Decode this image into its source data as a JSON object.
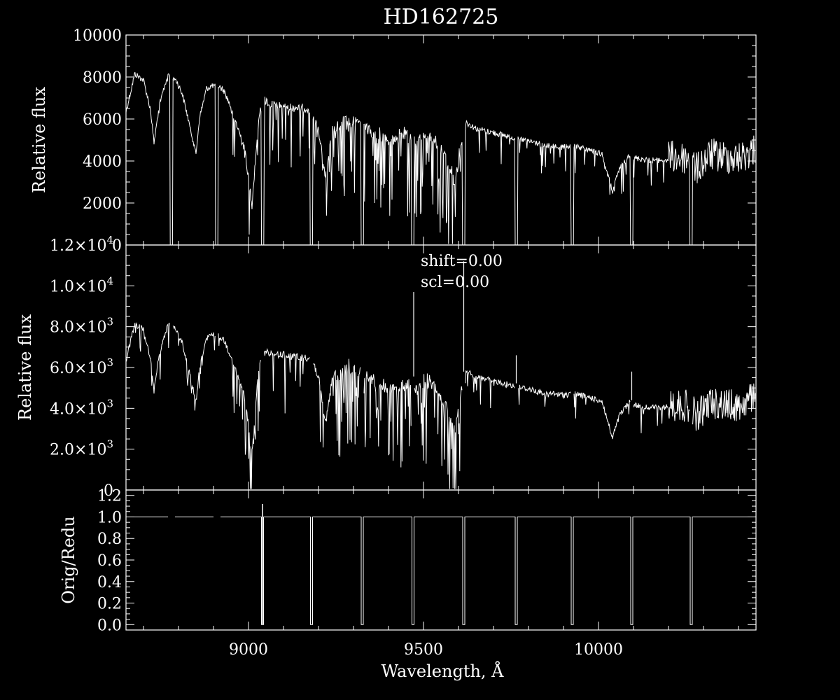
{
  "title": "HD162725",
  "xlabel": "Wavelength, Å",
  "colors": {
    "background": "#000000",
    "foreground": "#ffffff"
  },
  "chart_data": [
    {
      "type": "line",
      "name": "top-panel",
      "ylabel": "Relative flux",
      "xlim": [
        8650,
        10450
      ],
      "ylim": [
        0,
        10000
      ],
      "yticks": [
        "0",
        "2000",
        "4000",
        "6000",
        "8000",
        "10000"
      ],
      "xticks": [
        "9000",
        "9500",
        "10000"
      ],
      "grid": false,
      "gaps": [
        8780,
        8910,
        9040,
        9180,
        9325,
        9470,
        9615,
        9765,
        9925,
        10095,
        10265
      ],
      "x": [
        8650,
        8675,
        8700,
        8720,
        8730,
        8745,
        8770,
        8782,
        8790,
        8810,
        8830,
        8850,
        8860,
        8880,
        8905,
        8915,
        8930,
        8960,
        8990,
        9010,
        9030,
        9045,
        9060,
        9100,
        9140,
        9170,
        9185,
        9200,
        9220,
        9240,
        9280,
        9320,
        9330,
        9360,
        9400,
        9430,
        9460,
        9480,
        9500,
        9530,
        9560,
        9590,
        9610,
        9620,
        9650,
        9700,
        9750,
        9770,
        9800,
        9850,
        9900,
        9930,
        9970,
        10010,
        10040,
        10060,
        10090,
        10100,
        10150,
        10200,
        10260,
        10280,
        10320,
        10360,
        10400,
        10450
      ],
      "y": [
        6500,
        8300,
        8000,
        6600,
        5000,
        6800,
        8300,
        8200,
        8100,
        7400,
        6000,
        4500,
        6200,
        7600,
        7800,
        7700,
        7500,
        6300,
        4800,
        2200,
        6500,
        7200,
        7000,
        6900,
        6800,
        6800,
        6500,
        5800,
        3500,
        5800,
        6500,
        6300,
        6200,
        5800,
        5500,
        5600,
        5800,
        5400,
        5800,
        5600,
        4800,
        3500,
        5600,
        6000,
        5700,
        5500,
        5300,
        5200,
        5100,
        4900,
        4800,
        4900,
        4700,
        4500,
        2700,
        3800,
        4500,
        4300,
        4200,
        4200,
        4100,
        3600,
        4300,
        4200,
        4100,
        4600
      ]
    },
    {
      "type": "line",
      "name": "middle-panel",
      "ylabel": "Relative flux",
      "xlim": [
        8650,
        10450
      ],
      "ylim": [
        0,
        12000
      ],
      "yticks": [
        {
          "m": "0",
          "e": ""
        },
        {
          "m": "2.0×10",
          "e": "3"
        },
        {
          "m": "4.0×10",
          "e": "3"
        },
        {
          "m": "6.0×10",
          "e": "3"
        },
        {
          "m": "8.0×10",
          "e": "3"
        },
        {
          "m": "1.0×10",
          "e": "4"
        },
        {
          "m": "1.2×10",
          "e": "4"
        }
      ],
      "annotations": [
        "shift=0.00",
        "scl=0.00"
      ],
      "grid": false,
      "gaps": [
        8780,
        8910,
        9040,
        9180,
        9325,
        9470,
        9615,
        9765,
        9925,
        10095,
        10265
      ],
      "spikes": [
        [
          9472,
          9700
        ],
        [
          9615,
          11200
        ],
        [
          9765,
          6600
        ],
        [
          10095,
          5800
        ]
      ],
      "x": [
        8650,
        8675,
        8700,
        8720,
        8730,
        8745,
        8770,
        8782,
        8790,
        8810,
        8830,
        8850,
        8860,
        8880,
        8905,
        8915,
        8930,
        8960,
        8990,
        9010,
        9030,
        9045,
        9060,
        9100,
        9140,
        9170,
        9185,
        9200,
        9220,
        9240,
        9280,
        9320,
        9330,
        9360,
        9400,
        9430,
        9460,
        9480,
        9500,
        9530,
        9560,
        9590,
        9610,
        9620,
        9650,
        9700,
        9750,
        9770,
        9800,
        9850,
        9900,
        9930,
        9970,
        10010,
        10040,
        10060,
        10090,
        10100,
        10150,
        10200,
        10260,
        10280,
        10320,
        10360,
        10400,
        10450
      ],
      "y": [
        6500,
        8300,
        8000,
        6600,
        5000,
        6800,
        8300,
        8200,
        8100,
        7400,
        6000,
        4500,
        6200,
        7600,
        7800,
        7700,
        7500,
        6300,
        4800,
        2200,
        6500,
        7200,
        7000,
        6900,
        6800,
        6800,
        6500,
        5800,
        3500,
        5800,
        6500,
        6300,
        6200,
        5800,
        5500,
        5600,
        5800,
        5400,
        5800,
        5600,
        4800,
        3500,
        5600,
        6000,
        5700,
        5500,
        5300,
        5200,
        5100,
        4900,
        4800,
        4900,
        4700,
        4500,
        2700,
        3800,
        4500,
        4300,
        4200,
        4200,
        4100,
        3600,
        4300,
        4200,
        4100,
        4600
      ]
    },
    {
      "type": "line",
      "name": "bottom-panel",
      "ylabel": "Orig/Redu",
      "xlim": [
        8650,
        10450
      ],
      "ylim": [
        -0.05,
        1.25
      ],
      "yticks": [
        "0.0",
        "0.2",
        "0.4",
        "0.6",
        "0.8",
        "1.0",
        "1.2"
      ],
      "grid": false,
      "level": 1.0,
      "dips": [
        9040,
        9180,
        9325,
        9470,
        9615,
        9765,
        9925,
        10095,
        10265
      ],
      "gaps": [
        8780,
        8910
      ],
      "spike": [
        9040,
        1.12
      ]
    }
  ],
  "xticks": [
    "9000",
    "9500",
    "10000"
  ]
}
